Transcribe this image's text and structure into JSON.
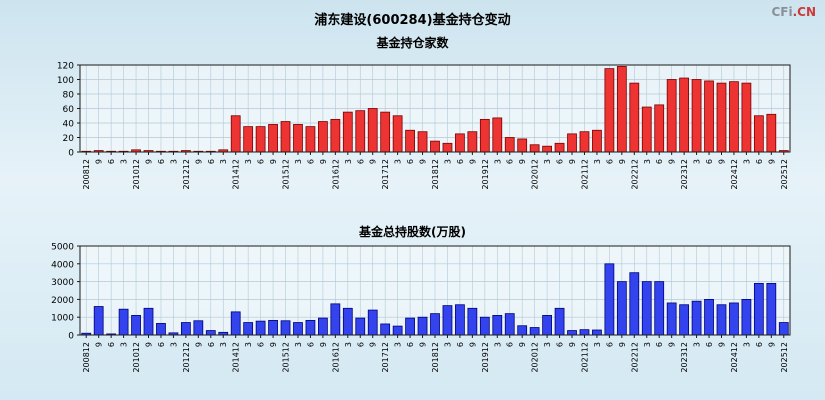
{
  "header": {
    "title": "浦东建设(600284)基金持仓变动",
    "watermark_prefix": "CFi",
    "watermark_suffix": ".CN"
  },
  "chart_data": [
    {
      "type": "bar",
      "title": "基金持仓家数",
      "xlabel": "",
      "ylabel": "",
      "ylim": [
        0,
        120
      ],
      "yticks": [
        0,
        20,
        40,
        60,
        80,
        100,
        120
      ],
      "grid": true,
      "bar_color": "#ee3333",
      "bar_border": "#7a0000",
      "categories": [
        "200812",
        "9",
        "6",
        "3",
        "201012",
        "9",
        "6",
        "3",
        "201212",
        "9",
        "6",
        "3",
        "201412",
        "3",
        "6",
        "9",
        "201512",
        "3",
        "6",
        "9",
        "201612",
        "3",
        "6",
        "9",
        "201712",
        "3",
        "6",
        "9",
        "201812",
        "3",
        "6",
        "9",
        "201912",
        "3",
        "6",
        "9",
        "202012",
        "3",
        "6",
        "9",
        "202112",
        "3",
        "6",
        "9",
        "202212",
        "3",
        "6",
        "9",
        "202312",
        "3",
        "6",
        "9",
        "202412",
        "3",
        "6",
        "9",
        "202512"
      ],
      "values": [
        1,
        2,
        1,
        1,
        3,
        2,
        1,
        1,
        2,
        1,
        1,
        3,
        50,
        35,
        35,
        38,
        42,
        38,
        35,
        42,
        45,
        55,
        57,
        60,
        55,
        50,
        30,
        28,
        15,
        12,
        25,
        28,
        45,
        47,
        20,
        18,
        10,
        8,
        12,
        25,
        28,
        30,
        115,
        118,
        95,
        62,
        65,
        100,
        102,
        100,
        98,
        95,
        97,
        95,
        50,
        52,
        2
      ]
    },
    {
      "type": "bar",
      "title": "基金总持股数(万股)",
      "xlabel": "",
      "ylabel": "",
      "ylim": [
        0,
        5000
      ],
      "yticks": [
        0,
        1000,
        2000,
        3000,
        4000,
        5000
      ],
      "grid": true,
      "bar_color": "#3344ee",
      "bar_border": "#000077",
      "categories": [
        "200812",
        "9",
        "6",
        "3",
        "201012",
        "9",
        "6",
        "3",
        "201212",
        "9",
        "6",
        "3",
        "201412",
        "3",
        "6",
        "9",
        "201512",
        "3",
        "6",
        "9",
        "201612",
        "3",
        "6",
        "9",
        "201712",
        "3",
        "6",
        "9",
        "201812",
        "3",
        "6",
        "9",
        "201912",
        "3",
        "6",
        "9",
        "202012",
        "3",
        "6",
        "9",
        "202112",
        "3",
        "6",
        "9",
        "202212",
        "3",
        "6",
        "9",
        "202312",
        "3",
        "6",
        "9",
        "202412",
        "3",
        "6",
        "9",
        "202512"
      ],
      "values": [
        100,
        1600,
        60,
        1450,
        1100,
        1500,
        650,
        120,
        700,
        800,
        250,
        150,
        1300,
        700,
        780,
        820,
        800,
        700,
        820,
        950,
        1750,
        1500,
        950,
        1400,
        620,
        500,
        950,
        1000,
        1200,
        1650,
        1700,
        1500,
        1000,
        1100,
        1200,
        520,
        420,
        1100,
        1500,
        250,
        300,
        280,
        4000,
        3000,
        3500,
        3000,
        3000,
        1800,
        1700,
        1900,
        2000,
        1700,
        1800,
        2000,
        2900,
        2900,
        700
      ]
    }
  ]
}
